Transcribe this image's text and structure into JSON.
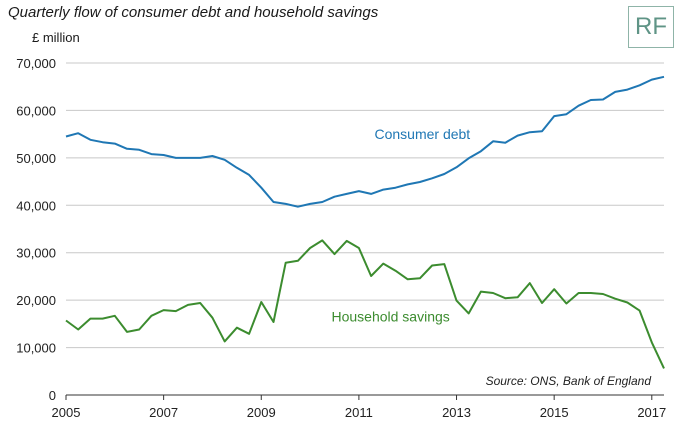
{
  "chart_data": {
    "type": "line",
    "title": "Quarterly flow of consumer debt and household savings",
    "ylabel": "£ million",
    "xlabel": "",
    "ylim": [
      0,
      70000
    ],
    "xlim": [
      2005,
      2017.25
    ],
    "yticks": [
      "0",
      "10,000",
      "20,000",
      "30,000",
      "40,000",
      "50,000",
      "60,000",
      "70,000"
    ],
    "ytick_values": [
      0,
      10000,
      20000,
      30000,
      40000,
      50000,
      60000,
      70000
    ],
    "xticks": [
      "2005",
      "2007",
      "2009",
      "2011",
      "2013",
      "2015",
      "2017"
    ],
    "xtick_values": [
      2005,
      2007,
      2009,
      2011,
      2013,
      2015,
      2017
    ],
    "grid": "horizontal",
    "source": "Source: ONS, Bank of England",
    "series": [
      {
        "name": "Consumer debt",
        "color": "#1f77b4",
        "x": [
          2005.0,
          2005.25,
          2005.5,
          2005.75,
          2006.0,
          2006.25,
          2006.5,
          2006.75,
          2007.0,
          2007.25,
          2007.5,
          2007.75,
          2008.0,
          2008.25,
          2008.5,
          2008.75,
          2009.0,
          2009.25,
          2009.5,
          2009.75,
          2010.0,
          2010.25,
          2010.5,
          2010.75,
          2011.0,
          2011.25,
          2011.5,
          2011.75,
          2012.0,
          2012.25,
          2012.5,
          2012.75,
          2013.0,
          2013.25,
          2013.5,
          2013.75,
          2014.0,
          2014.25,
          2014.5,
          2014.75,
          2015.0,
          2015.25,
          2015.5,
          2015.75,
          2016.0,
          2016.25,
          2016.5,
          2016.75,
          2017.0,
          2017.25
        ],
        "values": [
          54500,
          55200,
          53800,
          53300,
          53000,
          51900,
          51700,
          50800,
          50600,
          50000,
          50000,
          50000,
          50400,
          49600,
          47900,
          46400,
          43700,
          40700,
          40300,
          39700,
          40300,
          40700,
          41800,
          42400,
          43000,
          42400,
          43300,
          43700,
          44400,
          44900,
          45700,
          46600,
          48000,
          49900,
          51400,
          53500,
          53200,
          54700,
          55400,
          55600,
          58800,
          59200,
          61000,
          62200,
          62300,
          63900,
          64400,
          65300,
          66500,
          67100
        ]
      },
      {
        "name": "Household savings",
        "color": "#3c8c2f",
        "x": [
          2005.0,
          2005.25,
          2005.5,
          2005.75,
          2006.0,
          2006.25,
          2006.5,
          2006.75,
          2007.0,
          2007.25,
          2007.5,
          2007.75,
          2008.0,
          2008.25,
          2008.5,
          2008.75,
          2009.0,
          2009.25,
          2009.5,
          2009.75,
          2010.0,
          2010.25,
          2010.5,
          2010.75,
          2011.0,
          2011.25,
          2011.5,
          2011.75,
          2012.0,
          2012.25,
          2012.5,
          2012.75,
          2013.0,
          2013.25,
          2013.5,
          2013.75,
          2014.0,
          2014.25,
          2014.5,
          2014.75,
          2015.0,
          2015.25,
          2015.5,
          2015.75,
          2016.0,
          2016.25,
          2016.5,
          2016.75,
          2017.0,
          2017.25
        ],
        "values": [
          15700,
          13800,
          16100,
          16100,
          16700,
          13300,
          13800,
          16700,
          17900,
          17700,
          19000,
          19400,
          16300,
          11300,
          14200,
          12900,
          19600,
          15400,
          27900,
          28300,
          31000,
          32600,
          29700,
          32500,
          31000,
          25100,
          27700,
          26200,
          24400,
          24600,
          27300,
          27600,
          19900,
          17200,
          21800,
          21500,
          20400,
          20600,
          23600,
          19400,
          22300,
          19300,
          21500,
          21500,
          21300,
          20300,
          19500,
          17800,
          11100,
          5600
        ]
      }
    ],
    "annotations": [
      {
        "text": "Consumer debt",
        "x": 2012.3,
        "y": 54000,
        "color": "#1f77b4"
      },
      {
        "text": "Household savings",
        "x": 2011.65,
        "y": 15500,
        "color": "#3c8c2f"
      }
    ]
  },
  "logo": {
    "text": "RF"
  }
}
